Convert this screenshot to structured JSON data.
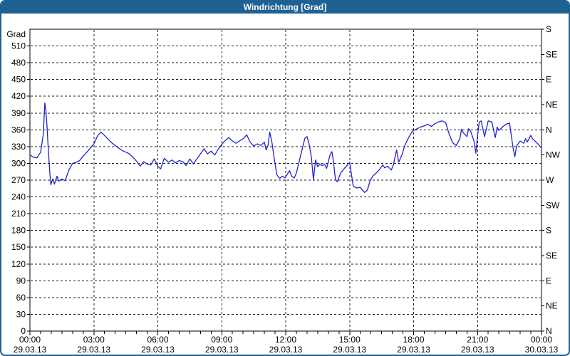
{
  "window": {
    "title": "Windrichtung [Grad]"
  },
  "colors": {
    "frame": "#1e6293",
    "titlebar_text": "#ffffff",
    "plot_background": "#ffffff",
    "axis": "#000000",
    "grid": "#1a1a1a",
    "line": "#2222cc"
  },
  "chart_data": {
    "type": "line",
    "title": "Windrichtung [Grad]",
    "ylabel_left": "Grad",
    "ylim": [
      0,
      540
    ],
    "y_tick_step_left": 30,
    "y_left_tick_labels": [
      "0",
      "30",
      "60",
      "90",
      "120",
      "150",
      "180",
      "210",
      "240",
      "270",
      "300",
      "330",
      "360",
      "390",
      "420",
      "450",
      "480",
      "510"
    ],
    "xlim_hours": [
      0,
      24
    ],
    "x_minor_step_hours": 0.5,
    "grid": {
      "horizontal": "dashed",
      "vertical": "dashed"
    },
    "x_labels": [
      {
        "hour": 0,
        "time": "00:00",
        "date": "29.03.13"
      },
      {
        "hour": 3,
        "time": "03:00",
        "date": "29.03.13"
      },
      {
        "hour": 6,
        "time": "06:00",
        "date": "29.03.13"
      },
      {
        "hour": 9,
        "time": "09:00",
        "date": "29.03.13"
      },
      {
        "hour": 12,
        "time": "12:00",
        "date": "29.03.13"
      },
      {
        "hour": 15,
        "time": "15:00",
        "date": "29.03.13"
      },
      {
        "hour": 18,
        "time": "18:00",
        "date": "29.03.13"
      },
      {
        "hour": 21,
        "time": "21:00",
        "date": "29.03.13"
      },
      {
        "hour": 24,
        "time": "00:00",
        "date": "30.03.13"
      }
    ],
    "right_axis_ticks": [
      {
        "deg": 540,
        "label": "S"
      },
      {
        "deg": 495,
        "label": "SE"
      },
      {
        "deg": 450,
        "label": "E"
      },
      {
        "deg": 405,
        "label": "NE"
      },
      {
        "deg": 360,
        "label": "N"
      },
      {
        "deg": 315,
        "label": "NW"
      },
      {
        "deg": 270,
        "label": "W"
      },
      {
        "deg": 225,
        "label": "SW"
      },
      {
        "deg": 180,
        "label": "S"
      },
      {
        "deg": 135,
        "label": "SE"
      },
      {
        "deg": 90,
        "label": "E"
      },
      {
        "deg": 45,
        "label": "NE"
      },
      {
        "deg": 0,
        "label": "N"
      }
    ],
    "series": [
      {
        "name": "Windrichtung",
        "color": "#2222cc",
        "points": [
          [
            0,
            315
          ],
          [
            0.17,
            311
          ],
          [
            0.33,
            310
          ],
          [
            0.5,
            320
          ],
          [
            0.63,
            352
          ],
          [
            0.7,
            408
          ],
          [
            0.75,
            395
          ],
          [
            0.8,
            368
          ],
          [
            0.87,
            320
          ],
          [
            0.93,
            285
          ],
          [
            0.98,
            262
          ],
          [
            1.07,
            272
          ],
          [
            1.15,
            263
          ],
          [
            1.27,
            277
          ],
          [
            1.35,
            268
          ],
          [
            1.5,
            272
          ],
          [
            1.65,
            269
          ],
          [
            1.83,
            288
          ],
          [
            2,
            300
          ],
          [
            2.17,
            302
          ],
          [
            2.33,
            305
          ],
          [
            2.5,
            313
          ],
          [
            2.67,
            320
          ],
          [
            2.83,
            327
          ],
          [
            3,
            335
          ],
          [
            3.17,
            349
          ],
          [
            3.33,
            356
          ],
          [
            3.5,
            350
          ],
          [
            3.67,
            343
          ],
          [
            3.83,
            337
          ],
          [
            4,
            332
          ],
          [
            4.17,
            327
          ],
          [
            4.33,
            323
          ],
          [
            4.5,
            320
          ],
          [
            4.67,
            317
          ],
          [
            4.83,
            311
          ],
          [
            5,
            304
          ],
          [
            5.17,
            295
          ],
          [
            5.33,
            303
          ],
          [
            5.5,
            299
          ],
          [
            5.67,
            297
          ],
          [
            5.83,
            308
          ],
          [
            6,
            295
          ],
          [
            6.13,
            290
          ],
          [
            6.3,
            309
          ],
          [
            6.5,
            302
          ],
          [
            6.67,
            306
          ],
          [
            6.83,
            301
          ],
          [
            7,
            305
          ],
          [
            7.17,
            303
          ],
          [
            7.33,
            296
          ],
          [
            7.5,
            308
          ],
          [
            7.67,
            299
          ],
          [
            7.83,
            308
          ],
          [
            8,
            317
          ],
          [
            8.17,
            326
          ],
          [
            8.33,
            317
          ],
          [
            8.5,
            322
          ],
          [
            8.67,
            315
          ],
          [
            8.83,
            325
          ],
          [
            9,
            334
          ],
          [
            9.17,
            341
          ],
          [
            9.33,
            346
          ],
          [
            9.5,
            340
          ],
          [
            9.67,
            336
          ],
          [
            9.83,
            340
          ],
          [
            10,
            344
          ],
          [
            10.17,
            351
          ],
          [
            10.33,
            338
          ],
          [
            10.5,
            331
          ],
          [
            10.67,
            335
          ],
          [
            10.83,
            332
          ],
          [
            11,
            338
          ],
          [
            11.08,
            324
          ],
          [
            11.17,
            332
          ],
          [
            11.25,
            356
          ],
          [
            11.35,
            338
          ],
          [
            11.45,
            312
          ],
          [
            11.58,
            280
          ],
          [
            11.72,
            273
          ],
          [
            11.85,
            277
          ],
          [
            11.97,
            274
          ],
          [
            12.08,
            281
          ],
          [
            12.18,
            287
          ],
          [
            12.28,
            277
          ],
          [
            12.4,
            274
          ],
          [
            12.5,
            283
          ],
          [
            12.6,
            298
          ],
          [
            12.75,
            322
          ],
          [
            12.9,
            345
          ],
          [
            13,
            348
          ],
          [
            13.1,
            334
          ],
          [
            13.2,
            312
          ],
          [
            13.3,
            271
          ],
          [
            13.4,
            306
          ],
          [
            13.5,
            294
          ],
          [
            13.6,
            299
          ],
          [
            13.7,
            296
          ],
          [
            13.83,
            298
          ],
          [
            13.92,
            291
          ],
          [
            14.08,
            315
          ],
          [
            14.17,
            321
          ],
          [
            14.25,
            300
          ],
          [
            14.33,
            272
          ],
          [
            14.42,
            267
          ],
          [
            14.58,
            283
          ],
          [
            14.75,
            291
          ],
          [
            14.92,
            298
          ],
          [
            15,
            302
          ],
          [
            15.08,
            282
          ],
          [
            15.17,
            259
          ],
          [
            15.33,
            256
          ],
          [
            15.5,
            257
          ],
          [
            15.6,
            252
          ],
          [
            15.7,
            248
          ],
          [
            15.83,
            252
          ],
          [
            15.95,
            268
          ],
          [
            16.08,
            277
          ],
          [
            16.25,
            283
          ],
          [
            16.42,
            290
          ],
          [
            16.55,
            297
          ],
          [
            16.65,
            292
          ],
          [
            16.78,
            295
          ],
          [
            16.95,
            288
          ],
          [
            17.05,
            297
          ],
          [
            17.2,
            324
          ],
          [
            17.3,
            302
          ],
          [
            17.45,
            315
          ],
          [
            17.6,
            333
          ],
          [
            17.75,
            345
          ],
          [
            17.9,
            355
          ],
          [
            18,
            359
          ],
          [
            18.17,
            362
          ],
          [
            18.33,
            365
          ],
          [
            18.5,
            367
          ],
          [
            18.67,
            370
          ],
          [
            18.83,
            366
          ],
          [
            19,
            371
          ],
          [
            19.17,
            374
          ],
          [
            19.33,
            376
          ],
          [
            19.5,
            373
          ],
          [
            19.67,
            352
          ],
          [
            19.83,
            337
          ],
          [
            20,
            332
          ],
          [
            20.17,
            344
          ],
          [
            20.25,
            361
          ],
          [
            20.33,
            355
          ],
          [
            20.5,
            348
          ],
          [
            20.58,
            362
          ],
          [
            20.67,
            358
          ],
          [
            20.83,
            340
          ],
          [
            20.92,
            318
          ],
          [
            21,
            350
          ],
          [
            21.08,
            374
          ],
          [
            21.17,
            376
          ],
          [
            21.33,
            348
          ],
          [
            21.5,
            376
          ],
          [
            21.67,
            374
          ],
          [
            21.83,
            346
          ],
          [
            21.92,
            365
          ],
          [
            22,
            359
          ],
          [
            22.17,
            365
          ],
          [
            22.33,
            370
          ],
          [
            22.5,
            372
          ],
          [
            22.67,
            327
          ],
          [
            22.75,
            312
          ],
          [
            22.83,
            331
          ],
          [
            23,
            340
          ],
          [
            23.17,
            336
          ],
          [
            23.25,
            344
          ],
          [
            23.33,
            338
          ],
          [
            23.5,
            350
          ],
          [
            23.58,
            344
          ],
          [
            23.75,
            338
          ],
          [
            23.92,
            331
          ],
          [
            24,
            327
          ]
        ]
      }
    ]
  }
}
